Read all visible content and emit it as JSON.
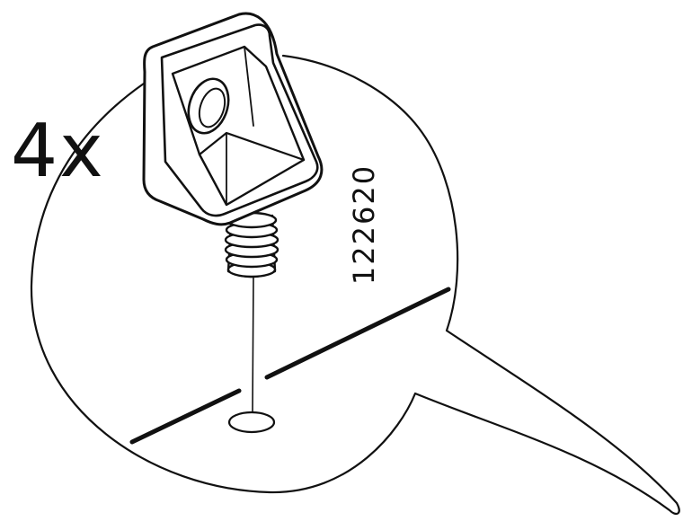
{
  "quantity_label": "4x",
  "part_number": "122620",
  "colors": {
    "ink": "#111111",
    "paper": "#ffffff"
  }
}
